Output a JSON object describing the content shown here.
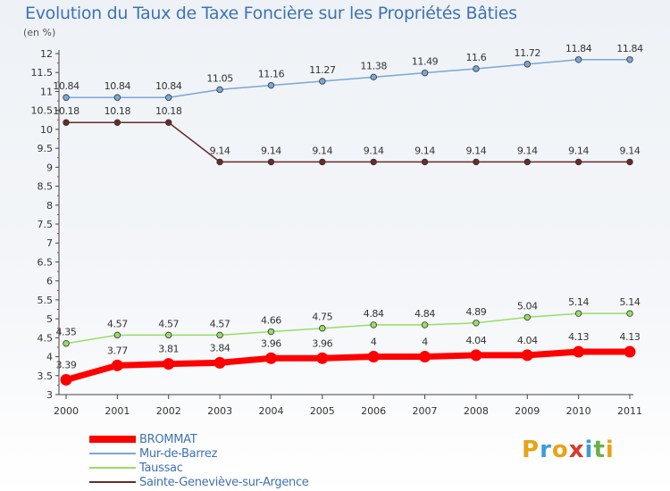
{
  "header": {
    "title": "Evolution du Taux de Taxe Foncière sur les Propriétés Bâties",
    "subtitle": "(en %)"
  },
  "logo": {
    "letters": [
      "P",
      "r",
      "o",
      "x",
      "i",
      "t",
      "i"
    ],
    "colors": [
      "#e8a317",
      "#3f9bd6",
      "#e8a317",
      "#d93a2b",
      "#3f9bd6",
      "#6ab04c",
      "#e8a317"
    ]
  },
  "chart_data": {
    "type": "line",
    "title": "Evolution du Taux de Taxe Foncière sur les Propriétés Bâties",
    "ylabel": "(en %)",
    "x": [
      "2000",
      "2001",
      "2002",
      "2003",
      "2004",
      "2005",
      "2006",
      "2007",
      "2008",
      "2009",
      "2010",
      "2011"
    ],
    "ylim": [
      3,
      12
    ],
    "yticks": [
      "3",
      "3.5",
      "4",
      "4.5",
      "5",
      "5.5",
      "6",
      "6.5",
      "7",
      "7.5",
      "8",
      "8.5",
      "9",
      "9.5",
      "10",
      "10.5",
      "11",
      "11.5",
      "12"
    ],
    "grid": false,
    "legend_position": "bottom-left",
    "series": [
      {
        "name": "BROMMAT",
        "color": "#ff0000",
        "values": [
          3.39,
          3.77,
          3.81,
          3.84,
          3.96,
          3.96,
          4,
          4,
          4.04,
          4.04,
          4.13,
          4.13
        ],
        "labels": [
          "3.39",
          "3.77",
          "3.81",
          "3.84",
          "3.96",
          "3.96",
          "4",
          "4",
          "4.04",
          "4.04",
          "4.13",
          "4.13"
        ]
      },
      {
        "name": "Mur-de-Barrez",
        "color": "#7aa7d6",
        "values": [
          10.84,
          10.84,
          10.84,
          11.05,
          11.16,
          11.27,
          11.38,
          11.49,
          11.6,
          11.72,
          11.84,
          11.84
        ],
        "labels": [
          "10.84",
          "10.84",
          "10.84",
          "11.05",
          "11.16",
          "11.27",
          "11.38",
          "11.49",
          "11.6",
          "11.72",
          "11.84",
          "11.84"
        ]
      },
      {
        "name": "Taussac",
        "color": "#99dd66",
        "values": [
          4.35,
          4.57,
          4.57,
          4.57,
          4.66,
          4.75,
          4.84,
          4.84,
          4.89,
          5.04,
          5.14,
          5.14
        ],
        "labels": [
          "4.35",
          "4.57",
          "4.57",
          "4.57",
          "4.66",
          "4.75",
          "4.84",
          "4.84",
          "4.89",
          "5.04",
          "5.14",
          "5.14"
        ]
      },
      {
        "name": "Sainte-Geneviève-sur-Argence",
        "color": "#6b2a2a",
        "values": [
          10.18,
          10.18,
          10.18,
          9.14,
          9.14,
          9.14,
          9.14,
          9.14,
          9.14,
          9.14,
          9.14,
          9.14
        ],
        "labels": [
          "10.18",
          "10.18",
          "10.18",
          "9.14",
          "9.14",
          "9.14",
          "9.14",
          "9.14",
          "9.14",
          "9.14",
          "9.14",
          "9.14"
        ]
      }
    ]
  }
}
